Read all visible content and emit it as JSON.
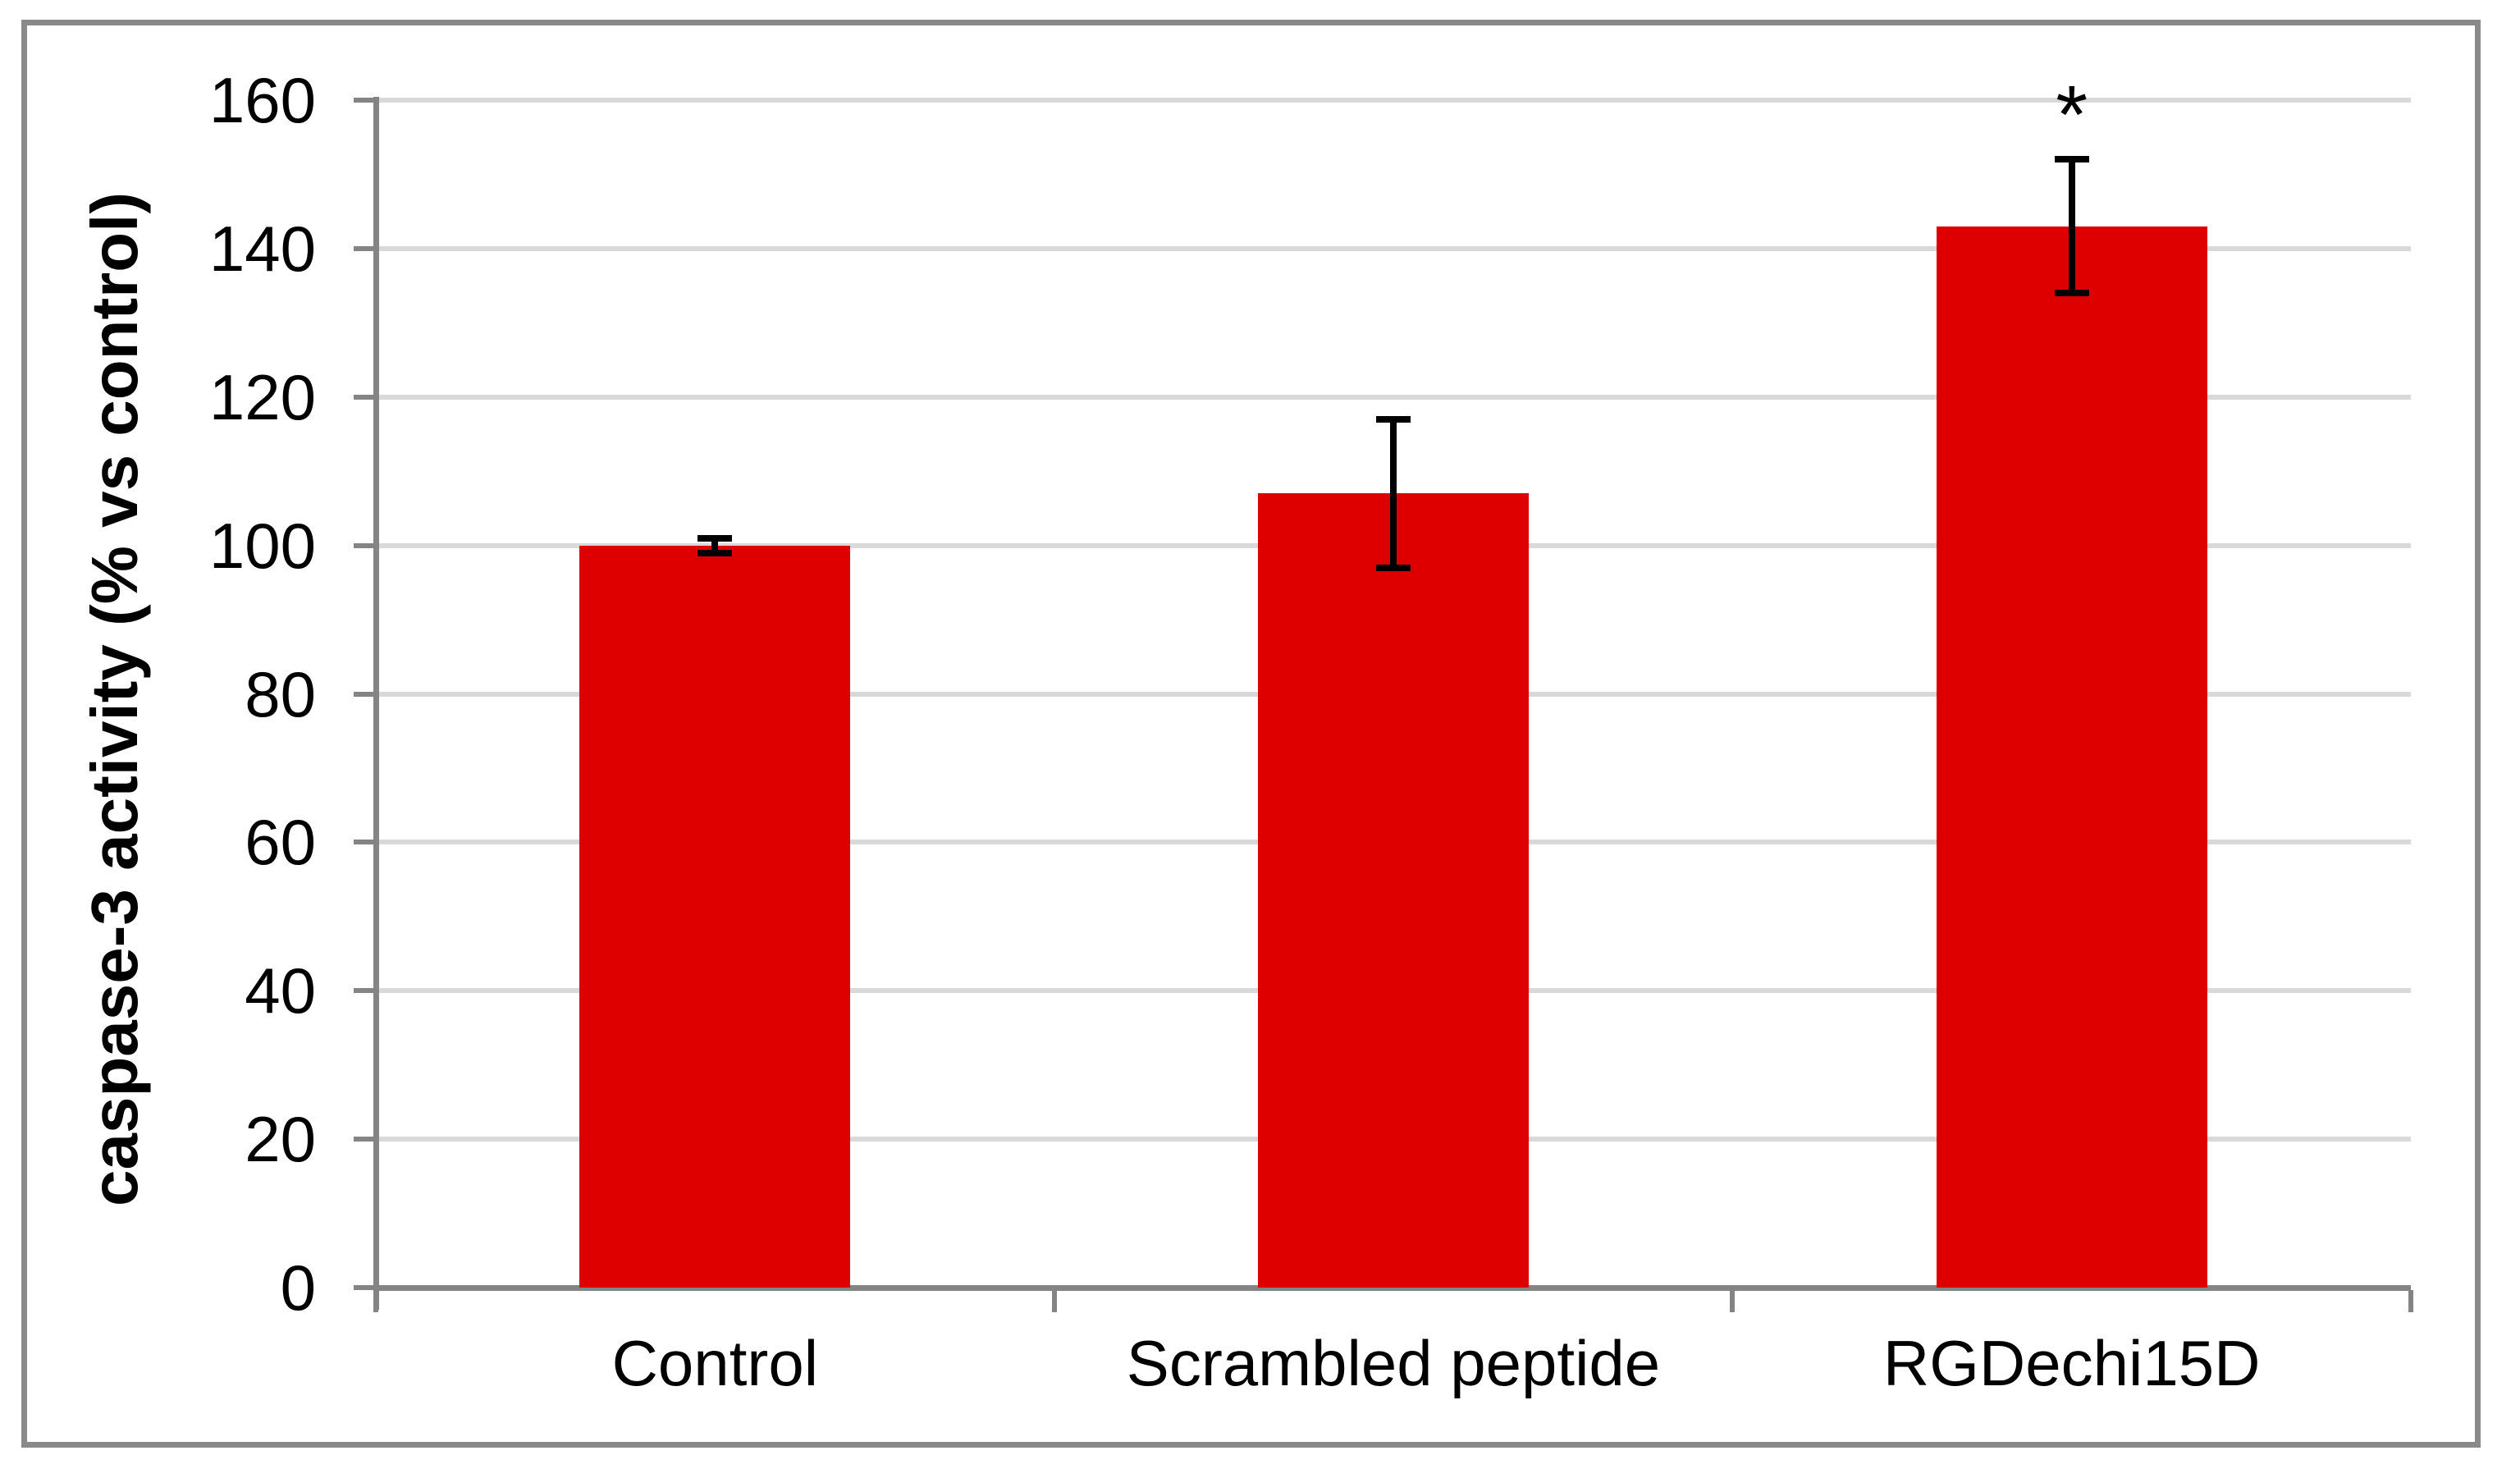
{
  "figure": {
    "background_color": "#FFFFFF",
    "border_color": "#898989"
  },
  "chart_data": {
    "type": "bar",
    "title": "",
    "xlabel": "",
    "ylabel": "caspase-3 activity (% vs control)",
    "categories": [
      "Control",
      "Scrambled peptide",
      "RGDechi15D"
    ],
    "values": [
      100,
      107,
      143
    ],
    "error_bars": [
      1,
      10,
      9
    ],
    "significance_labels": [
      "",
      "",
      "*"
    ],
    "ylim": [
      0,
      160
    ],
    "ytick_step": 20,
    "yticks": [
      0,
      20,
      40,
      60,
      80,
      100,
      120,
      140,
      160
    ],
    "grid": true,
    "legend": false,
    "bar_color": "#DE0000",
    "gridline_color": "#D9D9D9",
    "axis_color": "#848484",
    "error_bar_color": "#000000",
    "text_color": "#000000"
  }
}
